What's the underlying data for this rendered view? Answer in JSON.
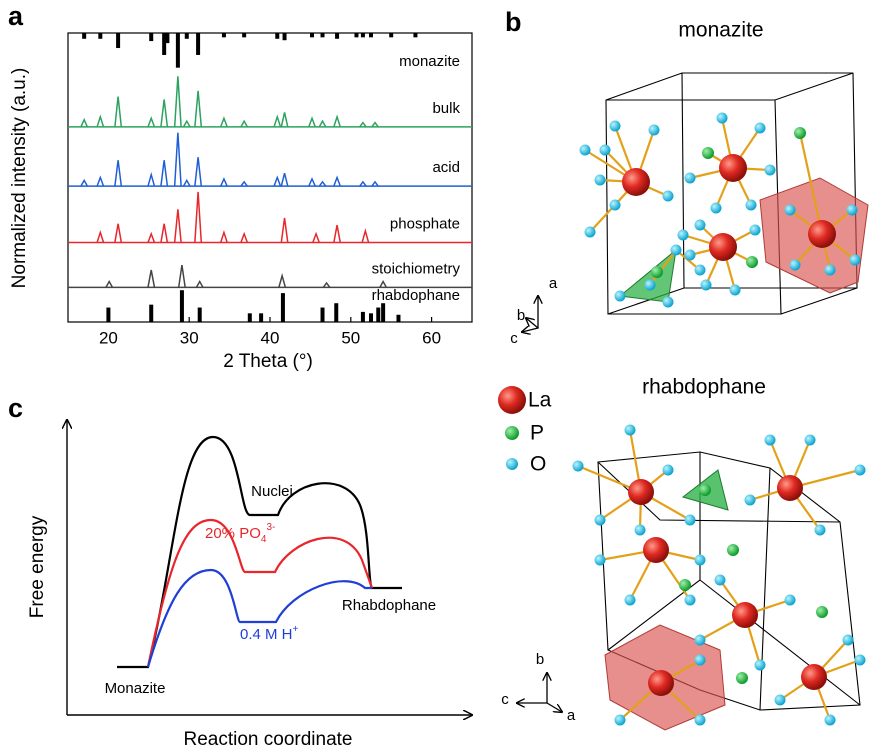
{
  "panel_labels": [
    "a",
    "b",
    "c"
  ],
  "chart_data": {
    "type": "line",
    "xlabel": "2 Theta (°)",
    "ylabel": "Normalized intensity (a.u.)",
    "xlim": [
      15,
      65
    ],
    "xticks": [
      20,
      30,
      40,
      50,
      60
    ],
    "ylim": [
      0,
      100
    ],
    "series": [
      {
        "name": "bulk",
        "color": "#2ca25f",
        "baseline": 67.5,
        "x": [
          17.0,
          19.0,
          21.2,
          25.3,
          26.9,
          28.6,
          29.7,
          31.1,
          34.3,
          36.8,
          40.9,
          41.8,
          45.2,
          46.5,
          48.3,
          51.5,
          53.0
        ],
        "values": [
          70,
          71,
          78,
          70.5,
          77,
          85,
          69.5,
          80,
          70.5,
          69.5,
          71,
          72.5,
          70.5,
          69.5,
          71,
          69,
          69
        ]
      },
      {
        "name": "acid",
        "color": "#1f5fd6",
        "baseline": 47,
        "x": [
          17.0,
          19.0,
          21.2,
          25.3,
          26.9,
          28.6,
          29.7,
          31.1,
          34.3,
          36.8,
          40.9,
          41.8,
          45.2,
          46.5,
          48.3,
          51.5,
          53.0
        ],
        "values": [
          49,
          50,
          56,
          51,
          56,
          65.5,
          49,
          57,
          49.5,
          48.5,
          50,
          51.5,
          49.5,
          48.5,
          50,
          48.5,
          48.5
        ]
      },
      {
        "name": "phosphate",
        "color": "#e8262b",
        "baseline": 27.5,
        "x": [
          19.0,
          21.2,
          25.3,
          26.9,
          28.6,
          31.1,
          34.3,
          36.8,
          41.8,
          45.7,
          48.3,
          51.8
        ],
        "values": [
          31,
          34,
          30.5,
          34,
          39,
          45,
          31,
          30.5,
          36,
          30.5,
          33.5,
          31.5
        ]
      },
      {
        "name": "stoichiometry",
        "color": "#444444",
        "baseline": 12,
        "x": [
          20.1,
          25.3,
          29.1,
          31.3,
          41.5,
          47.0,
          54.0
        ],
        "values": [
          14,
          18,
          19.7,
          14,
          16,
          13.5,
          14
        ]
      }
    ],
    "references": [
      {
        "name": "monazite",
        "color": "#000000",
        "anchor": "top",
        "x": [
          17.0,
          19.0,
          21.2,
          25.3,
          26.9,
          27.3,
          28.6,
          29.7,
          31.1,
          34.3,
          36.8,
          40.9,
          41.8,
          45.2,
          46.5,
          48.3,
          50.7,
          51.5,
          52.5,
          55.0,
          58.0
        ],
        "values": [
          2,
          2,
          5.2,
          2.8,
          7.6,
          3.5,
          12,
          2,
          7.6,
          1.5,
          1.5,
          2,
          2.5,
          1.5,
          1.5,
          2,
          1.5,
          1.5,
          1.5,
          1.5,
          1.5
        ]
      },
      {
        "name": "rhabdophane",
        "color": "#000000",
        "anchor": "bottom",
        "x": [
          20.0,
          25.3,
          29.1,
          31.3,
          37.5,
          38.9,
          41.6,
          46.5,
          48.2,
          51.5,
          52.5,
          53.4,
          54.0,
          55.9
        ],
        "values": [
          5,
          6,
          11,
          5,
          3,
          3,
          10,
          5,
          6.5,
          3.5,
          3,
          5,
          6.5,
          2.5
        ]
      }
    ]
  },
  "structures": {
    "monazite": {
      "title": "monazite",
      "axes": [
        "a",
        "b",
        "c"
      ]
    },
    "rhabdophane": {
      "title": "rhabdophane",
      "axes": [
        "b",
        "c",
        "a"
      ]
    },
    "legend": [
      "La",
      "P",
      "O"
    ]
  },
  "energy_diagram": {
    "ylabel": "Free energy",
    "xlabel": "Reaction coordinate",
    "start": "Monazite",
    "end": "Rhabdophane",
    "nuclei": "Nuclei",
    "phosphate": {
      "text": "20% PO",
      "sub": "4",
      "sup": "3-"
    },
    "acid": {
      "text": "0.4 M H",
      "sup": "+"
    }
  }
}
